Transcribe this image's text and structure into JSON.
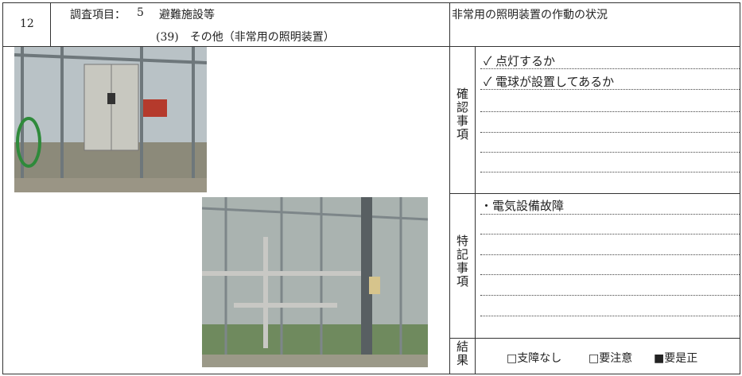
{
  "header": {
    "number": "12",
    "item_label": "調査項目：",
    "item_number": "5",
    "item_name": "避難施設等",
    "sub_item": "(39)　その他（非常用の照明装置）",
    "check_title": "非常用の照明装置の作動の状況"
  },
  "confirmation": {
    "label": "確認事項",
    "items": [
      "✓ 点灯するか",
      "✓ 電球が設置してあるか"
    ]
  },
  "remarks": {
    "label": "特記事項",
    "items": [
      "・電気設備故障"
    ]
  },
  "result": {
    "label": "結果",
    "options": [
      "□支障なし",
      "□要注意",
      "■要是正"
    ]
  }
}
